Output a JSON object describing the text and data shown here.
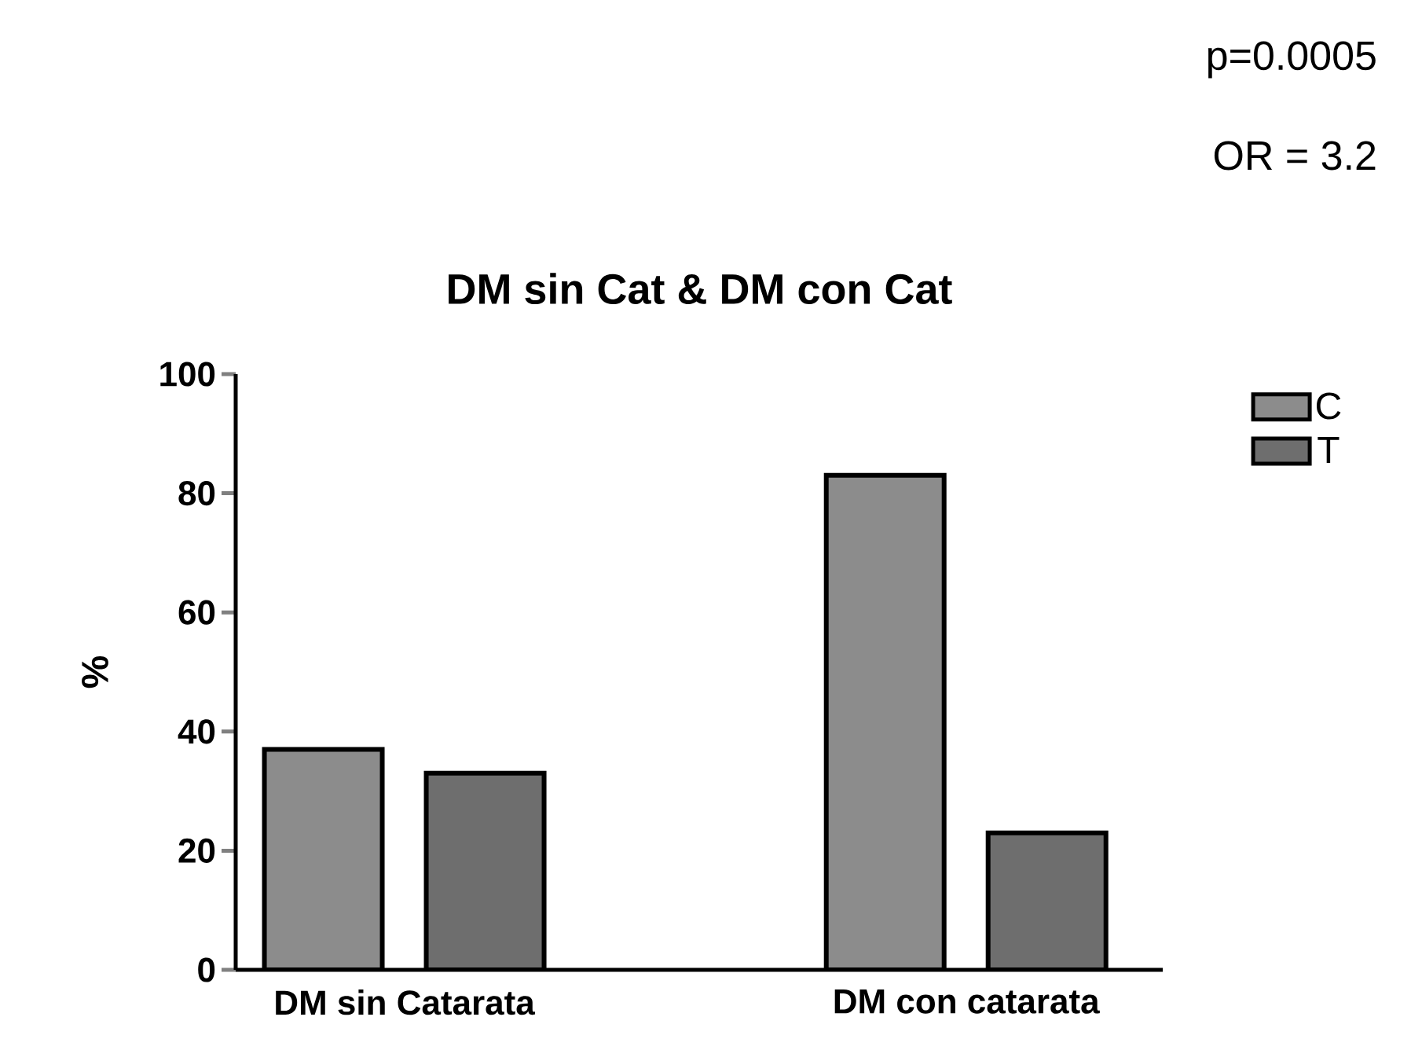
{
  "chart_data": {
    "type": "bar",
    "title": "DM sin Cat & DM con Cat",
    "ylabel": "%",
    "categories": [
      "DM sin Catarata",
      "DM con catarata"
    ],
    "series": [
      {
        "name": "C",
        "color": "#8c8c8c",
        "values": [
          37,
          83
        ]
      },
      {
        "name": "T",
        "color": "#6e6e6e",
        "values": [
          33,
          23
        ]
      }
    ],
    "ylim": [
      0,
      100
    ],
    "yticks": [
      0,
      20,
      40,
      60,
      80,
      100
    ],
    "legend": "top right",
    "annotations": [
      "p=0.0005",
      "OR = 3.2"
    ]
  }
}
